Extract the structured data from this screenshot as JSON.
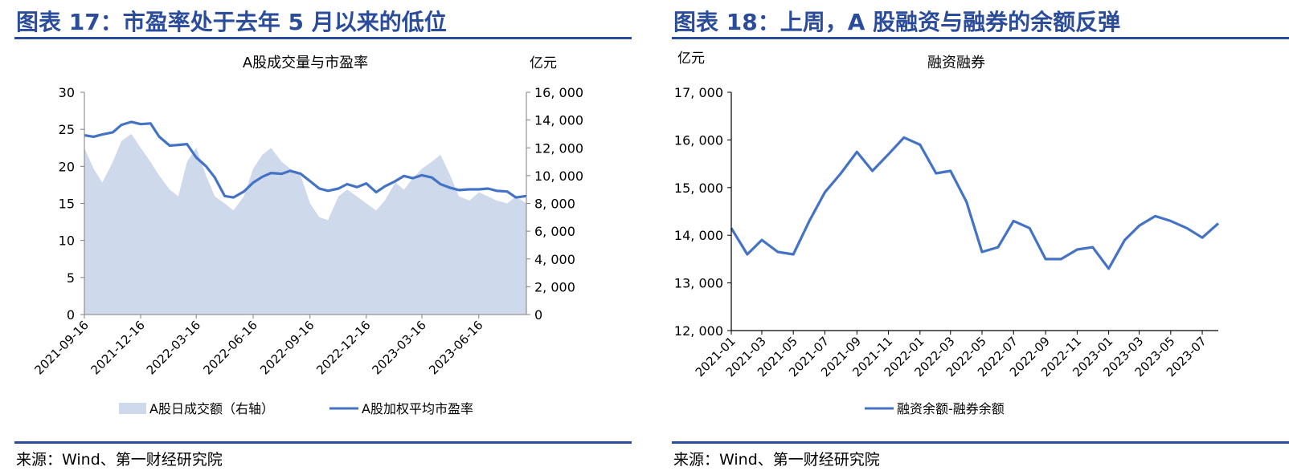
{
  "panels": {
    "left": {
      "figure_title": "图表 17：市盈率处于去年 5 月以来的低位",
      "source": "来源：Wind、第一财经研究院"
    },
    "right": {
      "figure_title": "图表 18：上周，A 股融资与融券的余额反弹",
      "source": "来源：Wind、第一财经研究院"
    }
  },
  "colors": {
    "accent": "#2b4c9b",
    "line": "#4472c4",
    "area": "#cfd9ec"
  },
  "chart_data": [
    {
      "type": "line",
      "title": "A股成交量与市盈率",
      "y2_unit": "亿元",
      "ylim": [
        0,
        30
      ],
      "yticks": [
        "0",
        "5",
        "10",
        "15",
        "20",
        "25",
        "30"
      ],
      "y2lim": [
        0,
        16000
      ],
      "y2ticks": [
        "0",
        "2, 000",
        "4, 000",
        "6, 000",
        "8, 000",
        "10, 000",
        "12, 000",
        "14, 000",
        "16, 000"
      ],
      "xlim": [
        "2021-09-16",
        "2023-09-01"
      ],
      "xticks": [
        "2021-09-16",
        "2021-12-16",
        "2022-03-16",
        "2022-06-16",
        "2022-09-16",
        "2022-12-16",
        "2023-03-16",
        "2023-06-16"
      ],
      "grid": false,
      "legend": "bottom",
      "series": [
        {
          "name": "A股日成交额（右轴）",
          "axis": "right",
          "kind": "area",
          "x": [
            "2021-09-16",
            "2021-10-01",
            "2021-10-15",
            "2021-11-01",
            "2021-11-15",
            "2021-12-01",
            "2021-12-16",
            "2022-01-01",
            "2022-01-15",
            "2022-02-01",
            "2022-02-15",
            "2022-03-01",
            "2022-03-16",
            "2022-04-01",
            "2022-04-15",
            "2022-05-01",
            "2022-05-15",
            "2022-06-01",
            "2022-06-16",
            "2022-07-01",
            "2022-07-15",
            "2022-08-01",
            "2022-08-15",
            "2022-09-01",
            "2022-09-16",
            "2022-10-01",
            "2022-10-15",
            "2022-11-01",
            "2022-11-15",
            "2022-12-01",
            "2022-12-16",
            "2023-01-01",
            "2023-01-15",
            "2023-02-01",
            "2023-02-15",
            "2023-03-01",
            "2023-03-16",
            "2023-04-01",
            "2023-04-15",
            "2023-05-01",
            "2023-05-15",
            "2023-06-01",
            "2023-06-16",
            "2023-07-01",
            "2023-07-15",
            "2023-08-01",
            "2023-08-15",
            "2023-09-01"
          ],
          "values": [
            12000,
            10500,
            9500,
            11000,
            12500,
            13000,
            12000,
            11000,
            10000,
            9000,
            8500,
            11000,
            12000,
            10000,
            8500,
            8000,
            7500,
            8500,
            10500,
            11500,
            12000,
            11000,
            10500,
            10000,
            8000,
            7000,
            6800,
            8500,
            9000,
            8500,
            8000,
            7500,
            8200,
            9500,
            9000,
            9800,
            10500,
            11000,
            11500,
            10000,
            8500,
            8200,
            8800,
            8500,
            8200,
            8000,
            8500,
            8000
          ]
        },
        {
          "name": "A股加权平均市盈率",
          "axis": "left",
          "kind": "line",
          "x": [
            "2021-09-16",
            "2021-10-01",
            "2021-10-15",
            "2021-11-01",
            "2021-11-15",
            "2021-12-01",
            "2021-12-16",
            "2022-01-01",
            "2022-01-15",
            "2022-02-01",
            "2022-02-15",
            "2022-03-01",
            "2022-03-16",
            "2022-04-01",
            "2022-04-15",
            "2022-05-01",
            "2022-05-15",
            "2022-06-01",
            "2022-06-16",
            "2022-07-01",
            "2022-07-15",
            "2022-08-01",
            "2022-08-15",
            "2022-09-01",
            "2022-09-16",
            "2022-10-01",
            "2022-10-15",
            "2022-11-01",
            "2022-11-15",
            "2022-12-01",
            "2022-12-16",
            "2023-01-01",
            "2023-01-15",
            "2023-02-01",
            "2023-02-15",
            "2023-03-01",
            "2023-03-16",
            "2023-04-01",
            "2023-04-15",
            "2023-05-01",
            "2023-05-15",
            "2023-06-01",
            "2023-06-16",
            "2023-07-01",
            "2023-07-15",
            "2023-08-01",
            "2023-08-15",
            "2023-09-01"
          ],
          "values": [
            24.2,
            24.0,
            24.3,
            24.6,
            25.6,
            26.0,
            25.7,
            25.8,
            24.0,
            22.8,
            22.9,
            23.0,
            21.2,
            20.0,
            18.5,
            16.0,
            15.8,
            16.6,
            17.8,
            18.6,
            19.1,
            19.0,
            19.4,
            19.0,
            18.0,
            17.0,
            16.7,
            17.0,
            17.6,
            17.2,
            17.7,
            16.5,
            17.3,
            18.0,
            18.7,
            18.4,
            18.8,
            18.5,
            17.6,
            17.1,
            16.8,
            16.9,
            16.9,
            17.0,
            16.7,
            16.6,
            15.8,
            16.0
          ]
        }
      ]
    },
    {
      "type": "line",
      "title": "融资融券",
      "y_unit": "亿元",
      "ylim": [
        12000,
        17000
      ],
      "yticks": [
        "12, 000",
        "13, 000",
        "14, 000",
        "15, 000",
        "16, 000",
        "17, 000"
      ],
      "xlim": [
        "2021-01",
        "2023-08"
      ],
      "xticks": [
        "2021-01",
        "2021-03",
        "2021-05",
        "2021-07",
        "2021-09",
        "2021-11",
        "2022-01",
        "2022-03",
        "2022-05",
        "2022-07",
        "2022-09",
        "2022-11",
        "2023-01",
        "2023-03",
        "2023-05",
        "2023-07"
      ],
      "grid": false,
      "legend": "bottom",
      "series": [
        {
          "name": "融资余额-融券余额",
          "x": [
            "2021-01",
            "2021-02",
            "2021-03",
            "2021-04",
            "2021-05",
            "2021-06",
            "2021-07",
            "2021-08",
            "2021-09",
            "2021-10",
            "2021-11",
            "2021-12",
            "2022-01",
            "2022-02",
            "2022-03",
            "2022-04",
            "2022-05",
            "2022-06",
            "2022-07",
            "2022-08",
            "2022-09",
            "2022-10",
            "2022-11",
            "2022-12",
            "2023-01",
            "2023-02",
            "2023-03",
            "2023-04",
            "2023-05",
            "2023-06",
            "2023-07",
            "2023-08"
          ],
          "values": [
            14150,
            13600,
            13900,
            13650,
            13600,
            14300,
            14900,
            15300,
            15750,
            15350,
            15700,
            16050,
            15900,
            15300,
            15350,
            14700,
            13650,
            13750,
            14300,
            14150,
            13500,
            13500,
            13700,
            13750,
            13300,
            13900,
            14200,
            14400,
            14300,
            14150,
            13950,
            14250
          ]
        }
      ]
    }
  ]
}
